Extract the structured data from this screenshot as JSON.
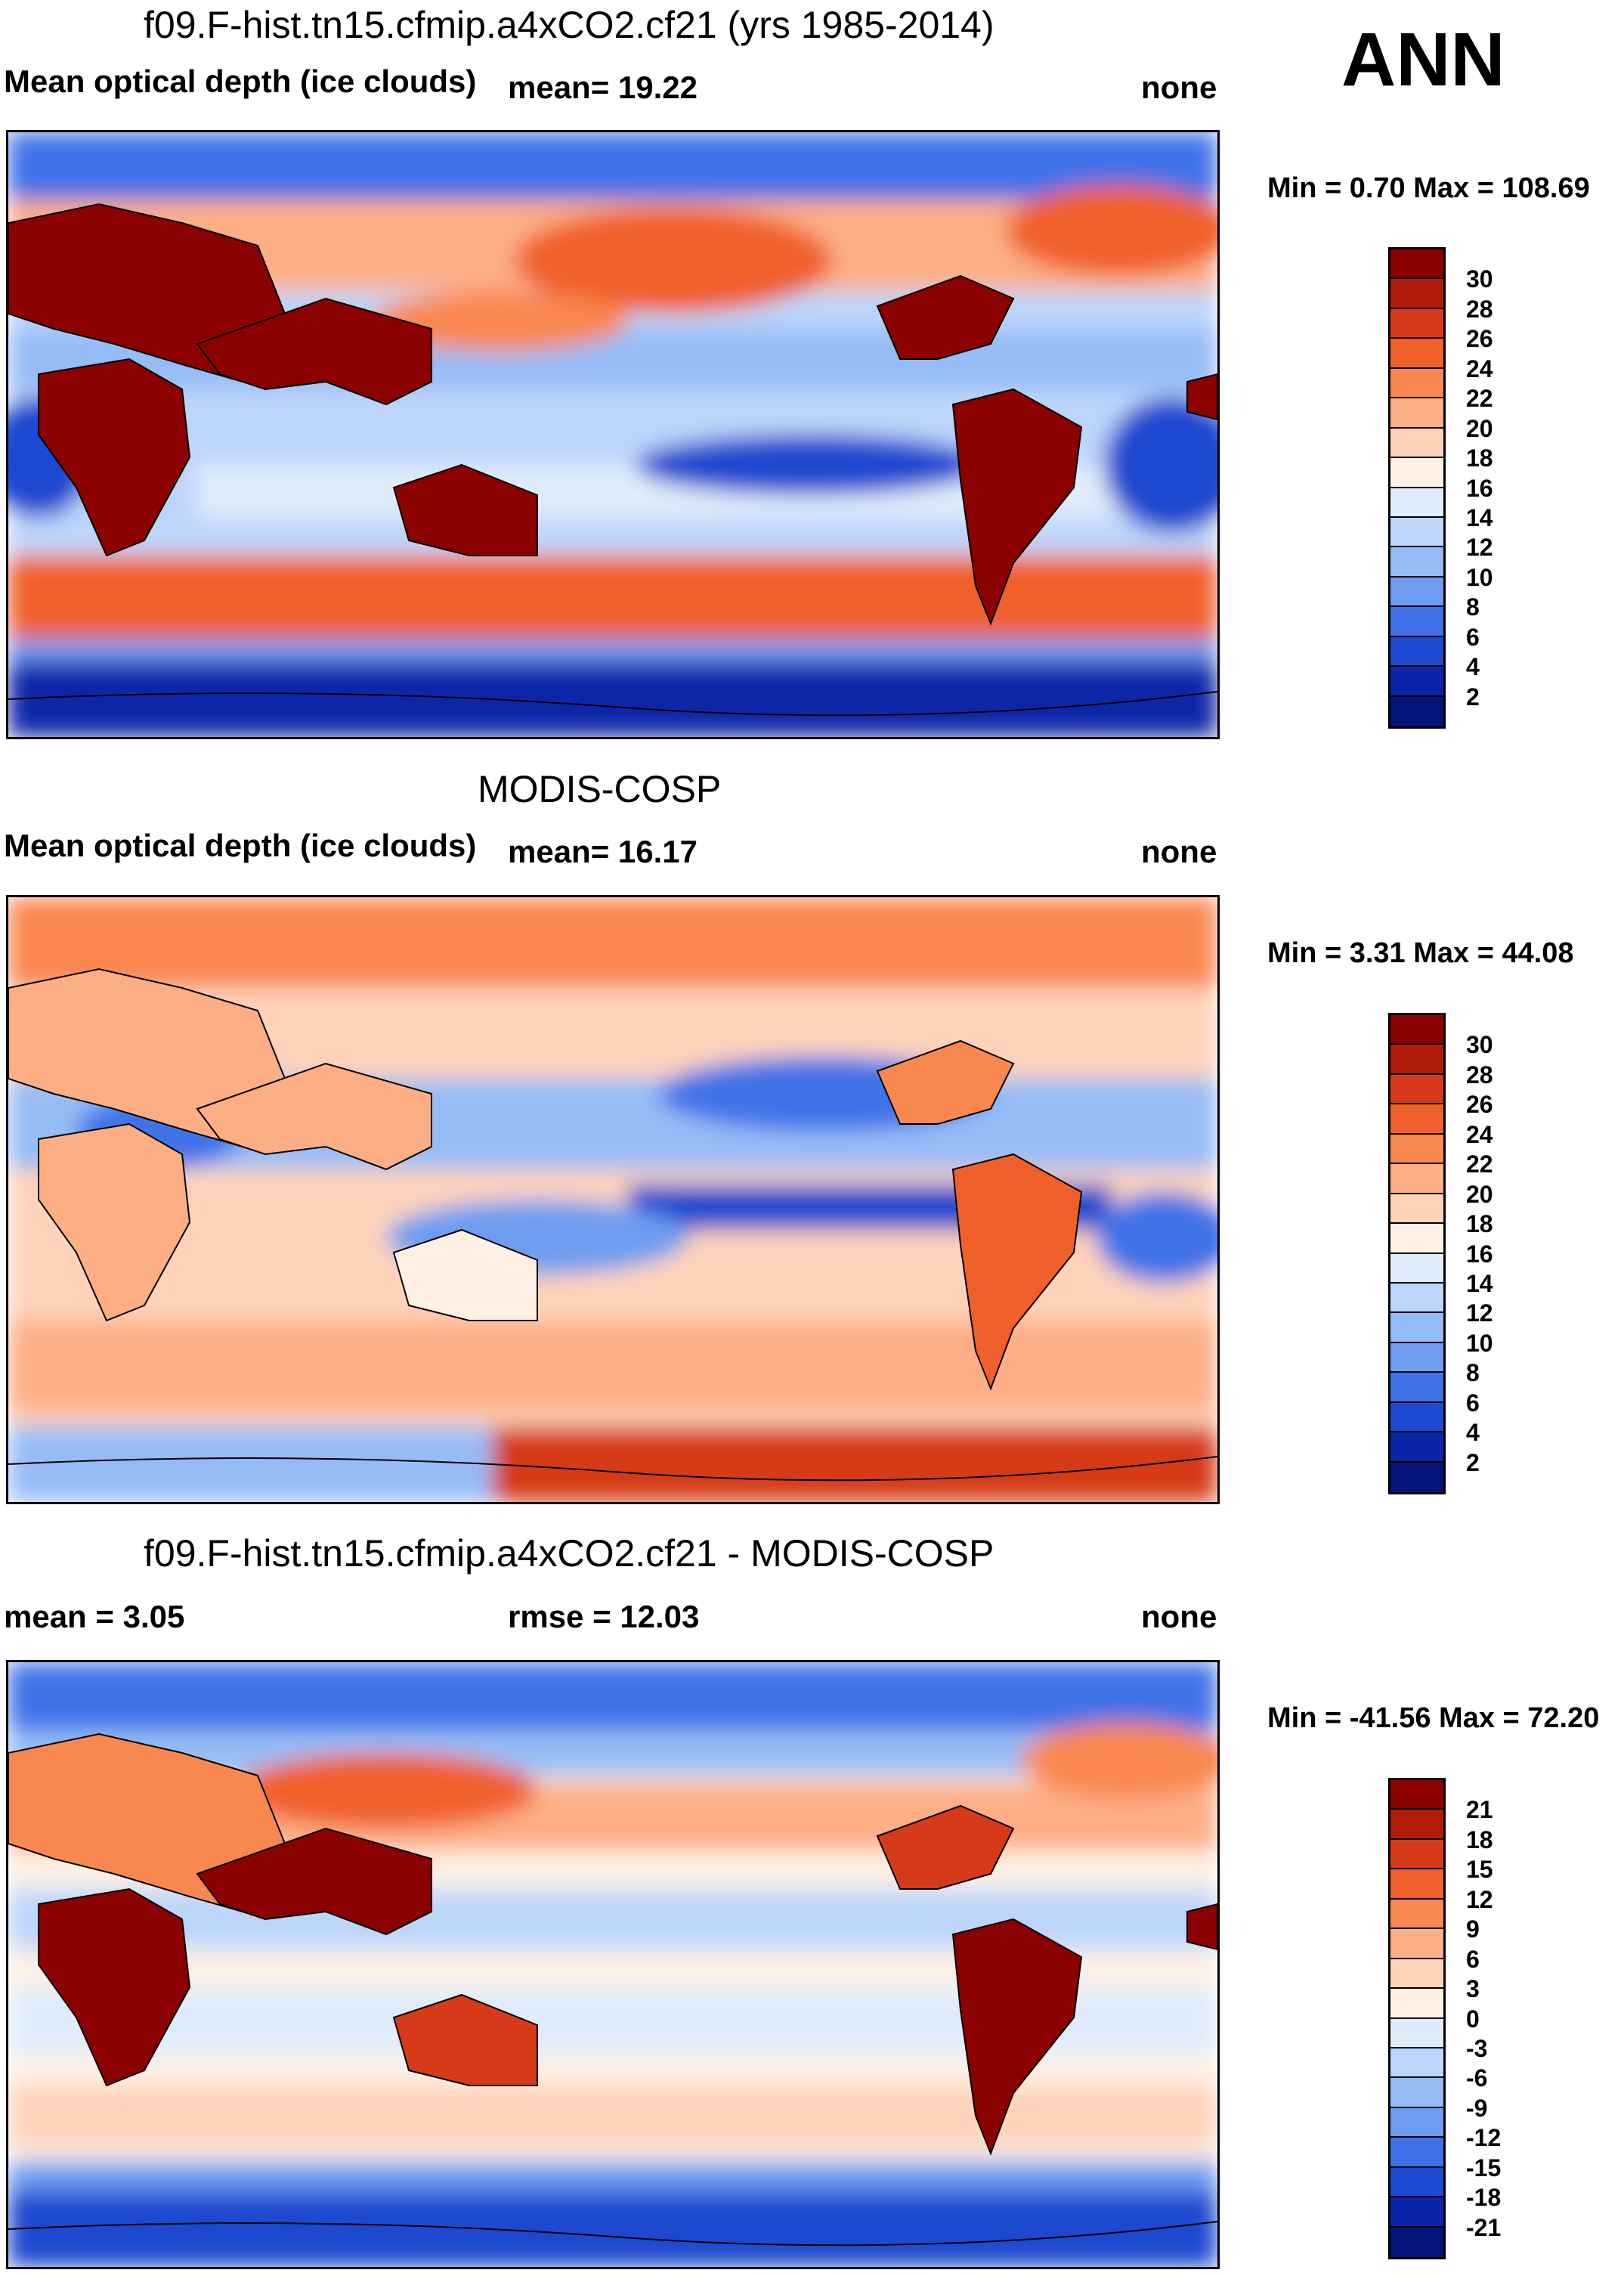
{
  "season": "ANN",
  "panels": [
    {
      "id": "model",
      "title": "f09.F-hist.tn15.cfmip.a4xCO2.cf21 (yrs 1985-2014)",
      "variable": "Mean optical depth (ice clouds)",
      "stat_text": "mean=  19.22",
      "units": "none",
      "minmax": "Min =   0.70 Max = 108.69",
      "colorbar": {
        "labels": [
          "30",
          "28",
          "26",
          "24",
          "22",
          "20",
          "18",
          "16",
          "14",
          "12",
          "10",
          "8",
          "6",
          "4",
          "2"
        ],
        "colors": [
          "#8b0000",
          "#b21a0a",
          "#d63a18",
          "#f0602a",
          "#f98750",
          "#fdae85",
          "#fed3ba",
          "#fef0e4",
          "#e0ecfb",
          "#bdd5fa",
          "#96bcf6",
          "#6d9cf0",
          "#3f72e8",
          "#1c49cf",
          "#0b25a8",
          "#04147a"
        ]
      }
    },
    {
      "id": "obs",
      "title": "MODIS-COSP",
      "variable": "Mean optical depth (ice clouds)",
      "stat_text": "mean=  16.17",
      "units": "none",
      "minmax": "Min =   3.31 Max =  44.08",
      "colorbar": {
        "labels": [
          "30",
          "28",
          "26",
          "24",
          "22",
          "20",
          "18",
          "16",
          "14",
          "12",
          "10",
          "8",
          "6",
          "4",
          "2"
        ],
        "colors": [
          "#8b0000",
          "#b21a0a",
          "#d63a18",
          "#f0602a",
          "#f98750",
          "#fdae85",
          "#fed3ba",
          "#fef0e4",
          "#e0ecfb",
          "#bdd5fa",
          "#96bcf6",
          "#6d9cf0",
          "#3f72e8",
          "#1c49cf",
          "#0b25a8",
          "#04147a"
        ]
      }
    },
    {
      "id": "diff",
      "title": "f09.F-hist.tn15.cfmip.a4xCO2.cf21 - MODIS-COSP",
      "variable": "",
      "mean_text": "mean =    3.05",
      "rmse_text": "rmse =  12.03",
      "units": "none",
      "minmax": "Min = -41.56 Max =  72.20",
      "colorbar": {
        "labels": [
          "21",
          "18",
          "15",
          "12",
          "9",
          "6",
          "3",
          "0",
          "-3",
          "-6",
          "-9",
          "-12",
          "-15",
          "-18",
          "-21"
        ],
        "colors": [
          "#8b0000",
          "#b21a0a",
          "#d63a18",
          "#f0602a",
          "#f98750",
          "#fdae85",
          "#fed3ba",
          "#fef0e4",
          "#e0ecfb",
          "#bdd5fa",
          "#96bcf6",
          "#6d9cf0",
          "#3f72e8",
          "#1c49cf",
          "#0b25a8",
          "#04147a"
        ]
      }
    }
  ],
  "chart_data": [
    {
      "type": "heatmap",
      "title": "f09.F-hist.tn15.cfmip.a4xCO2.cf21 (yrs 1985-2014)",
      "variable": "Mean optical depth (ice clouds)",
      "season": "ANN",
      "mean": 19.22,
      "min": 0.7,
      "max": 108.69,
      "units": "none",
      "contour_levels": [
        2,
        4,
        6,
        8,
        10,
        12,
        14,
        16,
        18,
        20,
        22,
        24,
        26,
        28,
        30
      ]
    },
    {
      "type": "heatmap",
      "title": "MODIS-COSP",
      "variable": "Mean optical depth (ice clouds)",
      "season": "ANN",
      "mean": 16.17,
      "min": 3.31,
      "max": 44.08,
      "units": "none",
      "contour_levels": [
        2,
        4,
        6,
        8,
        10,
        12,
        14,
        16,
        18,
        20,
        22,
        24,
        26,
        28,
        30
      ]
    },
    {
      "type": "heatmap",
      "title": "f09.F-hist.tn15.cfmip.a4xCO2.cf21 - MODIS-COSP",
      "season": "ANN",
      "mean": 3.05,
      "rmse": 12.03,
      "min": -41.56,
      "max": 72.2,
      "units": "none",
      "contour_levels": [
        -21,
        -18,
        -15,
        -12,
        -9,
        -6,
        -3,
        0,
        3,
        6,
        9,
        12,
        15,
        18,
        21
      ]
    }
  ]
}
